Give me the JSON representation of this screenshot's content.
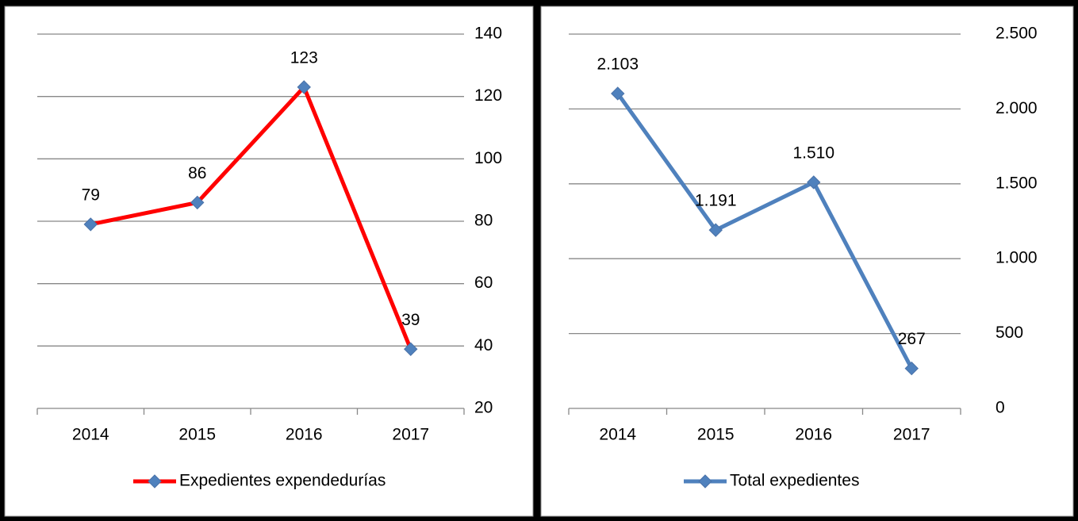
{
  "chart_data": [
    {
      "type": "line",
      "categories": [
        "2014",
        "2015",
        "2016",
        "2017"
      ],
      "series": [
        {
          "name": "Expedientes expendedurías",
          "color": "#ff0000",
          "values": [
            79,
            86,
            123,
            39
          ]
        }
      ],
      "ylim": [
        20,
        140
      ],
      "yticks": [
        20,
        40,
        60,
        80,
        100,
        120,
        140
      ],
      "grid": true,
      "legend": "bottom",
      "y_axis_side": "right"
    },
    {
      "type": "line",
      "categories": [
        "2014",
        "2015",
        "2016",
        "2017"
      ],
      "series": [
        {
          "name": "Total expedientes",
          "color": "#4f81bd",
          "values": [
            2103,
            1191,
            1510,
            267
          ],
          "value_labels": [
            "2.103",
            "1.191",
            "1.510",
            "267"
          ]
        }
      ],
      "ylim": [
        0,
        2500
      ],
      "yticks": [
        0,
        {
          "value": 500,
          "label": "500"
        },
        {
          "value": 1000,
          "label": "1.000"
        },
        {
          "value": 1500,
          "label": "1.500"
        },
        {
          "value": 2000,
          "label": "2.000"
        },
        {
          "value": 2500,
          "label": "2.500"
        }
      ],
      "grid": true,
      "legend": "bottom",
      "y_axis_side": "right"
    }
  ]
}
